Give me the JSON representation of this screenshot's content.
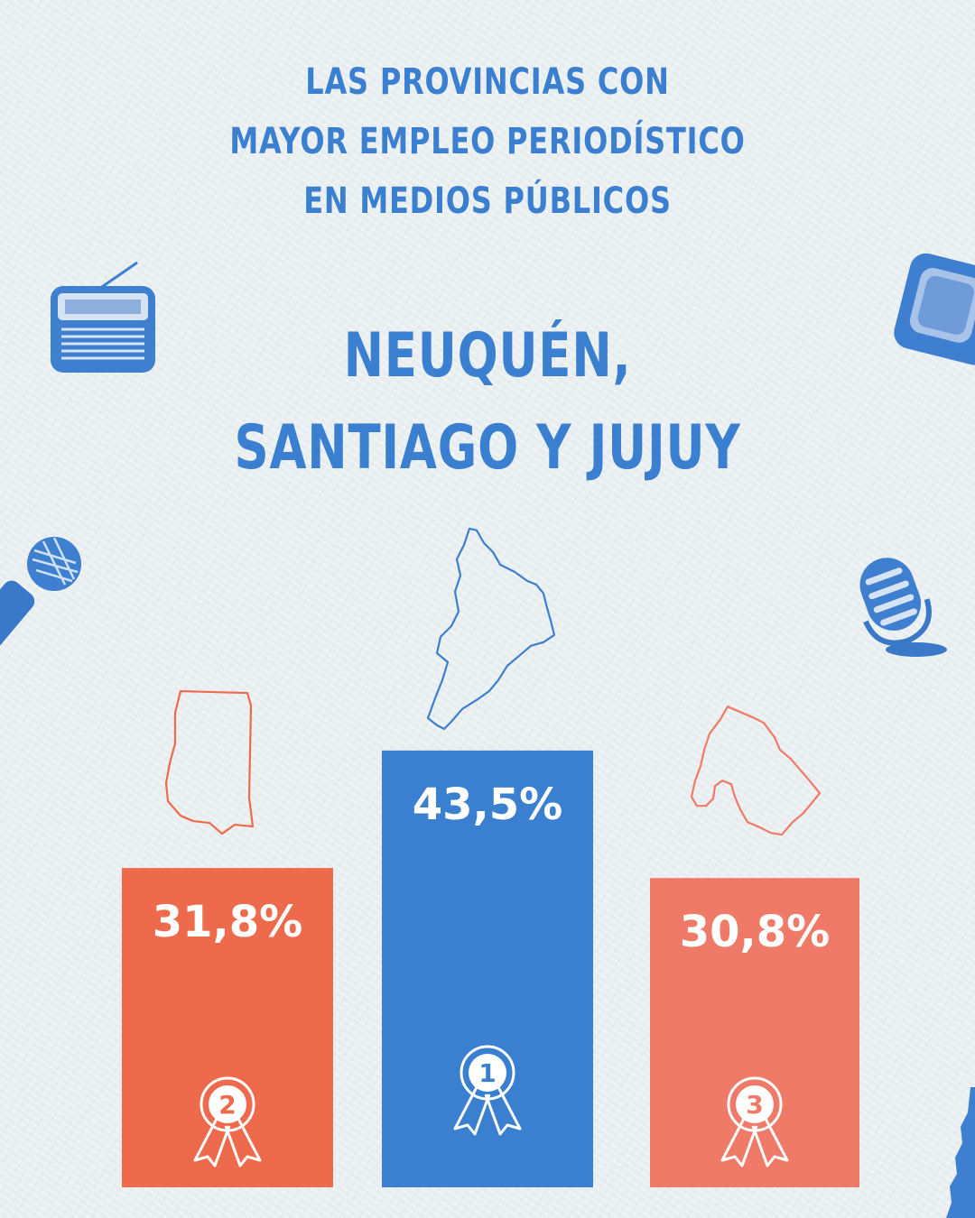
{
  "header": {
    "line1": "LAS PROVINCIAS CON",
    "line2": "MAYOR EMPLEO PERIODÍSTICO",
    "line3": "EN MEDIOS PÚBLICOS",
    "highlight1": "NEUQUÉN,",
    "highlight2": "SANTIAGO Y JUJUY"
  },
  "colors": {
    "blue": "#3a7fd0",
    "orange": "#ee6a4d",
    "salmon": "#ef7a68",
    "background": "#e9eef0"
  },
  "icons": [
    "radio-icon",
    "television-icon",
    "handheld-microphone-icon",
    "studio-microphone-icon"
  ],
  "chart_data": {
    "type": "bar",
    "categories": [
      "Santiago del Estero",
      "Neuquén",
      "Jujuy"
    ],
    "values": [
      31.8,
      43.5,
      30.8
    ],
    "value_labels": [
      "31,8%",
      "43,5%",
      "30,8%"
    ],
    "ranks": [
      "2",
      "1",
      "3"
    ],
    "bar_colors": [
      "#ee6a4d",
      "#3a7fd0",
      "#ef7a68"
    ],
    "title": "",
    "xlabel": "",
    "ylabel": ""
  }
}
